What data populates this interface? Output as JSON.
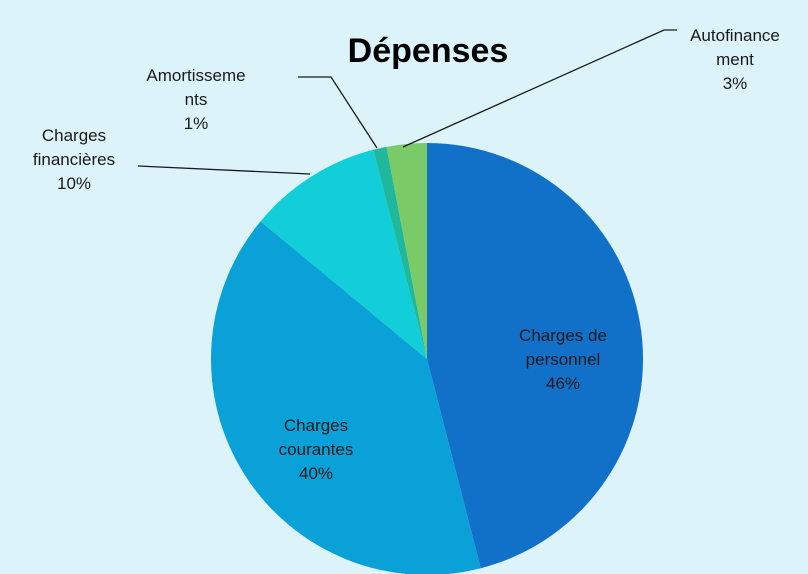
{
  "chart_data": {
    "type": "pie",
    "title": "Dépenses",
    "categories": [
      "Charges de personnel",
      "Charges courantes",
      "Charges financières",
      "Amortissements",
      "Autofinancement"
    ],
    "values": [
      46,
      40,
      10,
      1,
      3
    ],
    "value_labels": [
      "46%",
      "40%",
      "10%",
      "1%",
      "3%"
    ],
    "colors": [
      "#1170c8",
      "#0aa0d8",
      "#12ced8",
      "#1fb89c",
      "#7acb68"
    ]
  }
}
